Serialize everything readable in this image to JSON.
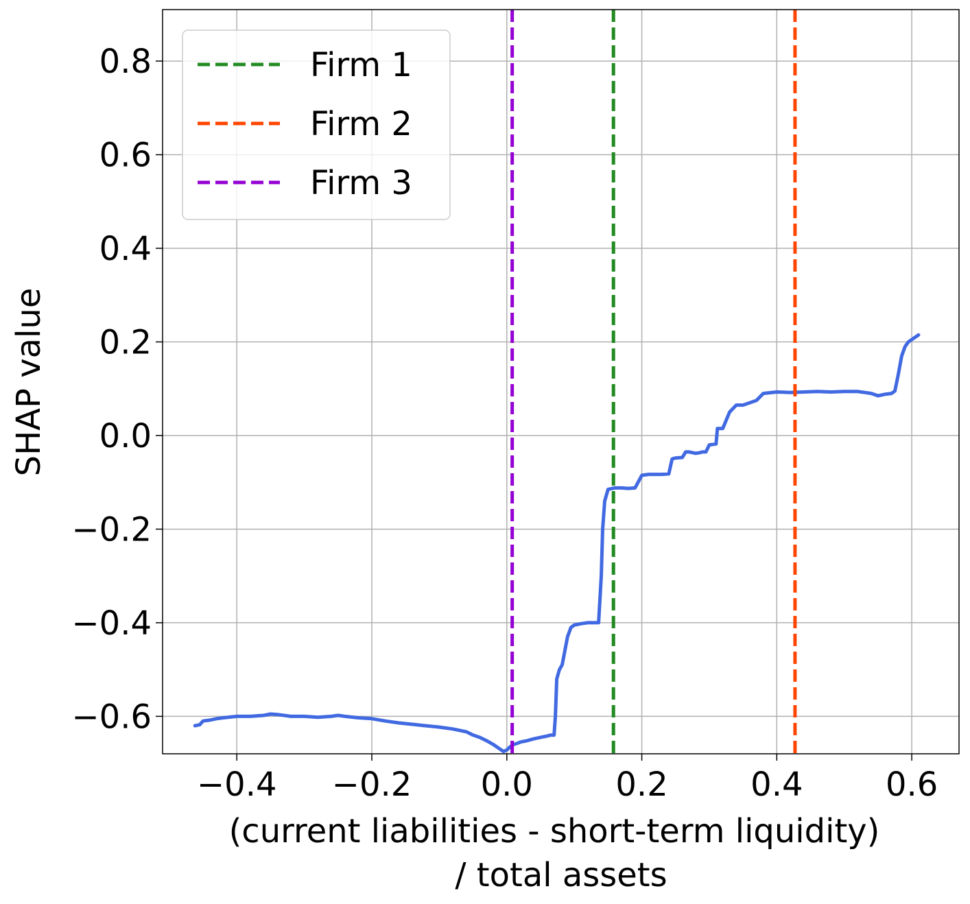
{
  "chart_data": {
    "type": "line",
    "title": "",
    "xlabel_lines": [
      "(current liabilities - short-term liquidity)",
      "/ total assets"
    ],
    "ylabel": "SHAP value",
    "xlim": [
      -0.51,
      0.67
    ],
    "ylim": [
      -0.68,
      0.91
    ],
    "x_ticks": [
      -0.4,
      -0.2,
      0.0,
      0.2,
      0.4,
      0.6
    ],
    "x_tick_labels": [
      "−0.4",
      "−0.2",
      "0.0",
      "0.2",
      "0.4",
      "0.6"
    ],
    "y_ticks": [
      -0.6,
      -0.4,
      -0.2,
      0.0,
      0.2,
      0.4,
      0.6,
      0.8
    ],
    "y_tick_labels": [
      "−0.6",
      "−0.4",
      "−0.2",
      "0.0",
      "0.2",
      "0.4",
      "0.6",
      "0.8"
    ],
    "grid": true,
    "legend_position": "top-left",
    "series": [
      {
        "color": "#4169e1",
        "x": [
          -0.462,
          -0.455,
          -0.45,
          -0.44,
          -0.43,
          -0.42,
          -0.4,
          -0.38,
          -0.36,
          -0.35,
          -0.34,
          -0.32,
          -0.3,
          -0.28,
          -0.26,
          -0.25,
          -0.24,
          -0.22,
          -0.2,
          -0.18,
          -0.16,
          -0.14,
          -0.12,
          -0.1,
          -0.08,
          -0.06,
          -0.05,
          -0.04,
          -0.03,
          -0.02,
          -0.01,
          -0.005,
          0.0,
          0.005,
          0.01,
          0.015,
          0.02,
          0.03,
          0.04,
          0.05,
          0.06,
          0.065,
          0.07,
          0.072,
          0.074,
          0.078,
          0.082,
          0.086,
          0.09,
          0.095,
          0.1,
          0.11,
          0.12,
          0.13,
          0.136,
          0.14,
          0.142,
          0.145,
          0.15,
          0.16,
          0.17,
          0.18,
          0.19,
          0.2,
          0.21,
          0.22,
          0.23,
          0.24,
          0.245,
          0.25,
          0.26,
          0.265,
          0.27,
          0.28,
          0.285,
          0.29,
          0.295,
          0.3,
          0.31,
          0.312,
          0.315,
          0.32,
          0.33,
          0.34,
          0.35,
          0.36,
          0.37,
          0.38,
          0.4,
          0.42,
          0.44,
          0.46,
          0.48,
          0.5,
          0.52,
          0.53,
          0.54,
          0.55,
          0.56,
          0.57,
          0.575,
          0.58,
          0.585,
          0.59,
          0.595,
          0.6,
          0.61
        ],
        "y": [
          -0.62,
          -0.618,
          -0.61,
          -0.608,
          -0.605,
          -0.603,
          -0.6,
          -0.6,
          -0.598,
          -0.595,
          -0.596,
          -0.6,
          -0.6,
          -0.602,
          -0.6,
          -0.598,
          -0.6,
          -0.603,
          -0.605,
          -0.61,
          -0.614,
          -0.617,
          -0.62,
          -0.623,
          -0.627,
          -0.633,
          -0.64,
          -0.645,
          -0.652,
          -0.66,
          -0.67,
          -0.675,
          -0.672,
          -0.665,
          -0.66,
          -0.658,
          -0.655,
          -0.652,
          -0.648,
          -0.645,
          -0.642,
          -0.64,
          -0.64,
          -0.6,
          -0.52,
          -0.5,
          -0.49,
          -0.46,
          -0.43,
          -0.41,
          -0.405,
          -0.402,
          -0.4,
          -0.4,
          -0.4,
          -0.3,
          -0.2,
          -0.14,
          -0.115,
          -0.112,
          -0.112,
          -0.113,
          -0.112,
          -0.085,
          -0.083,
          -0.083,
          -0.083,
          -0.082,
          -0.05,
          -0.048,
          -0.047,
          -0.035,
          -0.035,
          -0.038,
          -0.037,
          -0.035,
          -0.035,
          -0.02,
          -0.018,
          0.015,
          0.015,
          0.015,
          0.05,
          0.065,
          0.065,
          0.07,
          0.075,
          0.09,
          0.093,
          0.092,
          0.093,
          0.094,
          0.093,
          0.094,
          0.094,
          0.092,
          0.09,
          0.085,
          0.088,
          0.09,
          0.095,
          0.13,
          0.17,
          0.19,
          0.2,
          0.205,
          0.215
        ]
      }
    ],
    "vlines": [
      {
        "name": "Firm 1",
        "x": 0.158,
        "color": "#228b22"
      },
      {
        "name": "Firm 2",
        "x": 0.427,
        "color": "#ff4500"
      },
      {
        "name": "Firm 3",
        "x": 0.008,
        "color": "#9400d3"
      }
    ]
  }
}
